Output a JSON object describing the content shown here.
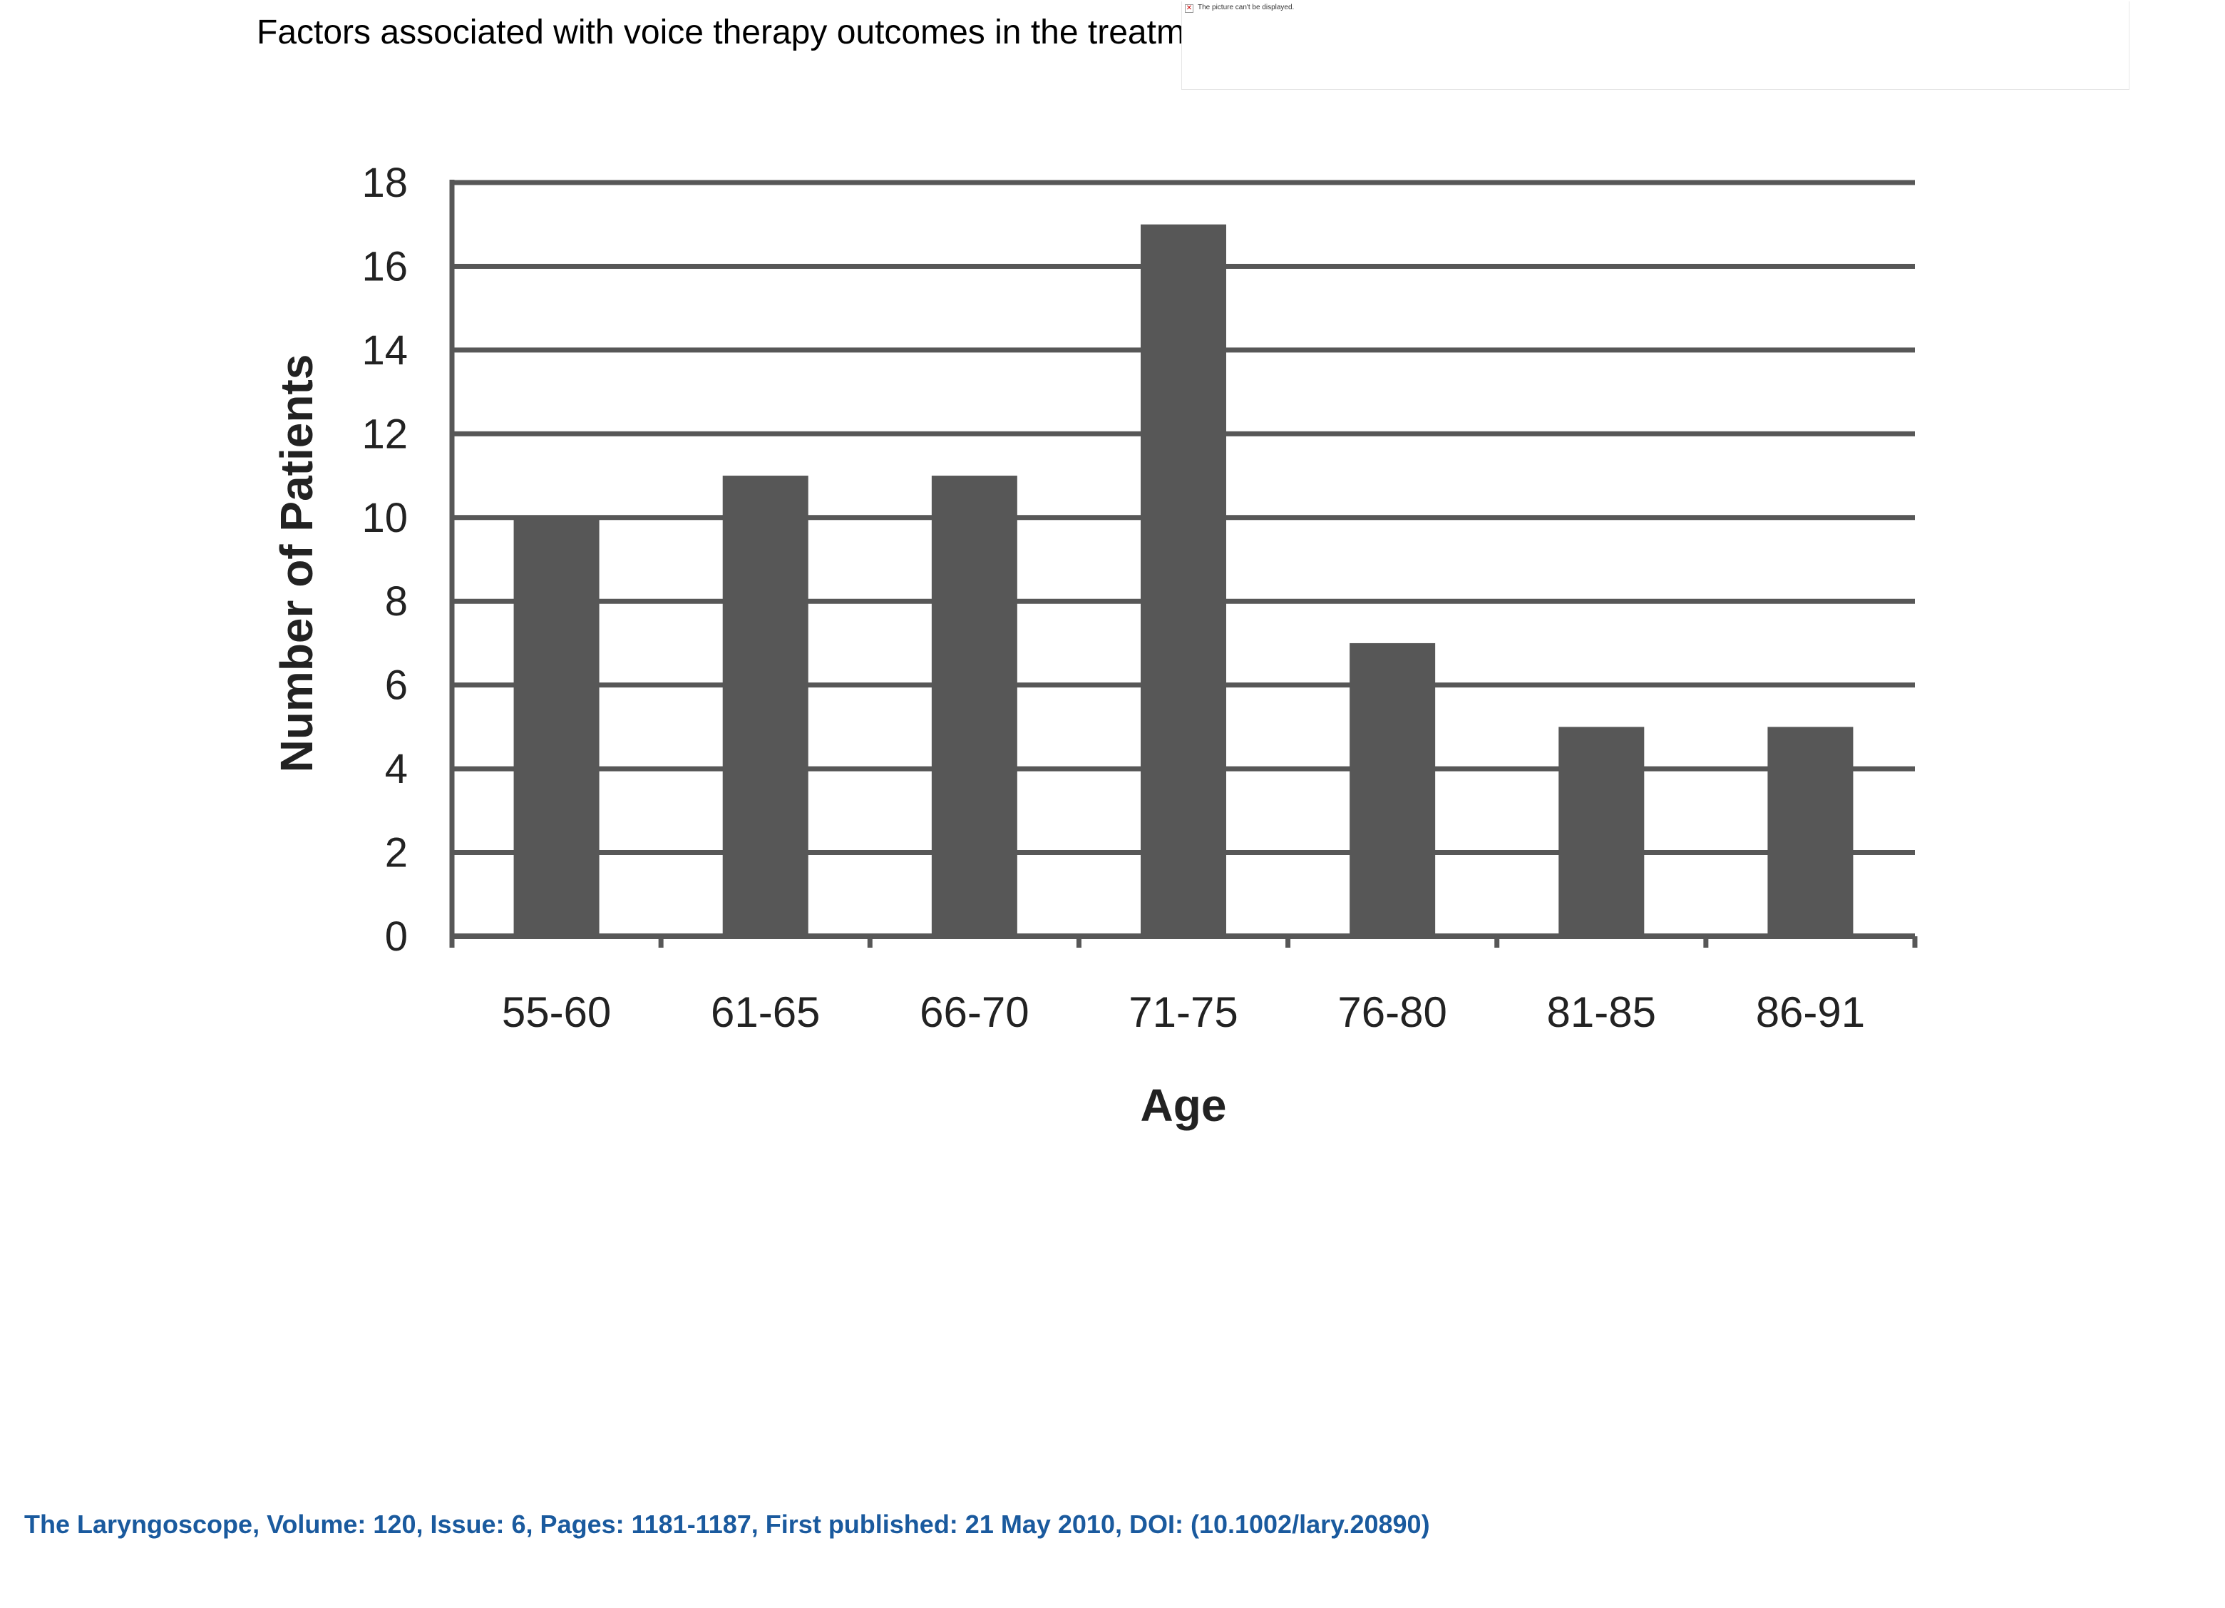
{
  "slide": {
    "title": "Factors associated with voice therapy outcomes in the treatment of presbyphonia",
    "broken_image_text": "The picture can't be displayed.",
    "broken_image_icon": "broken-image-icon",
    "citation": "The Laryngoscope, Volume: 120, Issue: 6, Pages: 1181-1187, First published: 21 May 2010, DOI: (10.1002/lary.20890)",
    "citation_color": "#1a5a9e"
  },
  "chart_data": {
    "type": "bar",
    "title": "",
    "xlabel": "Age",
    "ylabel": "Number of Patients",
    "categories": [
      "55-60",
      "61-65",
      "66-70",
      "71-75",
      "76-80",
      "81-85",
      "86-91"
    ],
    "values": [
      10,
      11,
      11,
      17,
      7,
      5,
      5
    ],
    "ylim": [
      0,
      18
    ],
    "yticks": [
      0,
      2,
      4,
      6,
      8,
      10,
      12,
      14,
      16,
      18
    ],
    "grid": true,
    "legend": "none",
    "bar_color": "#575757",
    "grid_color": "#575757"
  }
}
